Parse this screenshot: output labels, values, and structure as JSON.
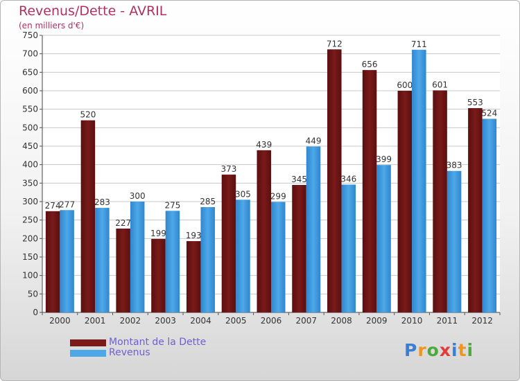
{
  "chart_data": {
    "type": "bar",
    "title": "Revenus/Dette - AVRIL",
    "subtitle": "(en milliers d'€)",
    "categories": [
      "2000",
      "2001",
      "2002",
      "2003",
      "2004",
      "2005",
      "2006",
      "2007",
      "2008",
      "2009",
      "2010",
      "2011",
      "2012"
    ],
    "series": [
      {
        "name": "Montant de la Dette",
        "color": "#7a1a1a",
        "values": [
          274,
          520,
          227,
          199,
          193,
          373,
          439,
          345,
          712,
          656,
          600,
          601,
          553
        ]
      },
      {
        "name": "Revenus",
        "color": "#4ea8e8",
        "values": [
          277,
          283,
          300,
          275,
          285,
          305,
          299,
          449,
          346,
          399,
          711,
          383,
          524
        ]
      }
    ],
    "ylim": [
      0,
      750
    ],
    "ytick_step": 50,
    "grid": true,
    "legend_position": "bottom-left"
  },
  "brand": {
    "letters": [
      "P",
      "r",
      "o",
      "x",
      "i",
      "t",
      "i"
    ],
    "colors": [
      "#3a7fd5",
      "#f0961e",
      "#4caa3c",
      "#e23a3a",
      "#3a7fd5",
      "#f0961e",
      "#4caa3c"
    ]
  }
}
